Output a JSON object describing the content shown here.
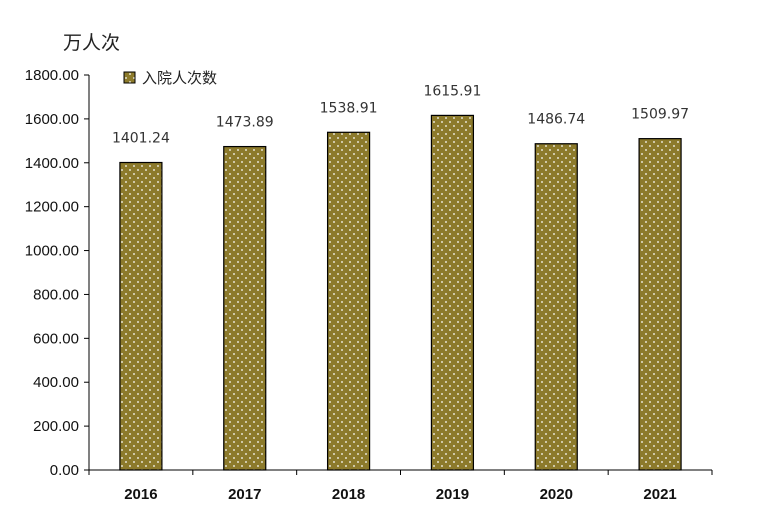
{
  "unit": "万人次",
  "chart_data": {
    "type": "bar",
    "categories": [
      "2016",
      "2017",
      "2018",
      "2019",
      "2020",
      "2021"
    ],
    "series": [
      {
        "name": "入院人次数",
        "values": [
          1401.24,
          1473.89,
          1538.91,
          1615.91,
          1486.74,
          1509.97
        ]
      }
    ],
    "data_labels": [
      "1401.24",
      "1473.89",
      "1538.91",
      "1615.91",
      "1486.74",
      "1509.97"
    ],
    "ylim": [
      0,
      1800
    ],
    "yticks": [
      "0.00",
      "200.00",
      "400.00",
      "600.00",
      "800.00",
      "1000.00",
      "1200.00",
      "1400.00",
      "1600.00",
      "1800.00"
    ],
    "legend_position": "top-left",
    "grid": false,
    "bar_color": "#8c7a2b"
  }
}
